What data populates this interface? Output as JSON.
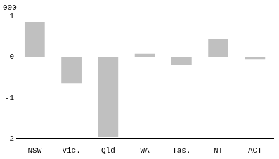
{
  "chart_data": {
    "type": "bar",
    "ylabel": "000",
    "categories": [
      "NSW",
      "Vic.",
      "Qld",
      "WA",
      "Tas.",
      "NT",
      "ACT"
    ],
    "values": [
      0.85,
      -0.65,
      -1.95,
      0.08,
      -0.2,
      0.45,
      -0.05
    ],
    "color": "#c0c0c0",
    "ylim": [
      -2.0,
      1.0
    ],
    "yticks": [
      -2,
      -1,
      0,
      1
    ],
    "grid": false
  }
}
